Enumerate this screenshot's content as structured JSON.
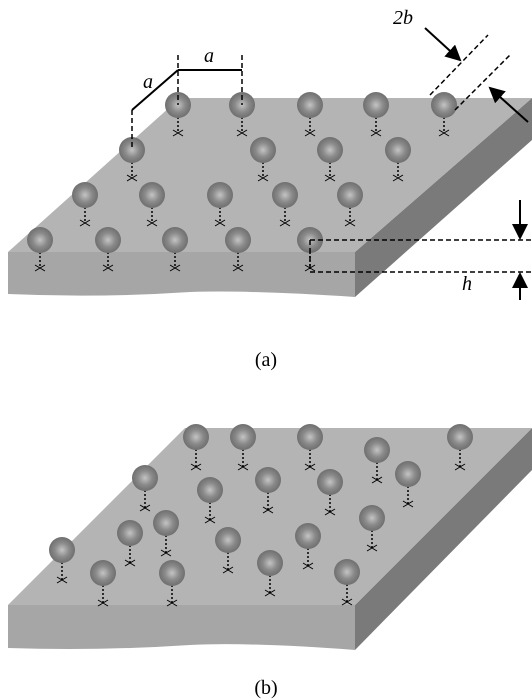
{
  "panel_a": {
    "labels": [
      "a",
      "a",
      "2b",
      "h"
    ],
    "caption": "(a)"
  },
  "panel_b": {
    "caption": "(b)"
  }
}
